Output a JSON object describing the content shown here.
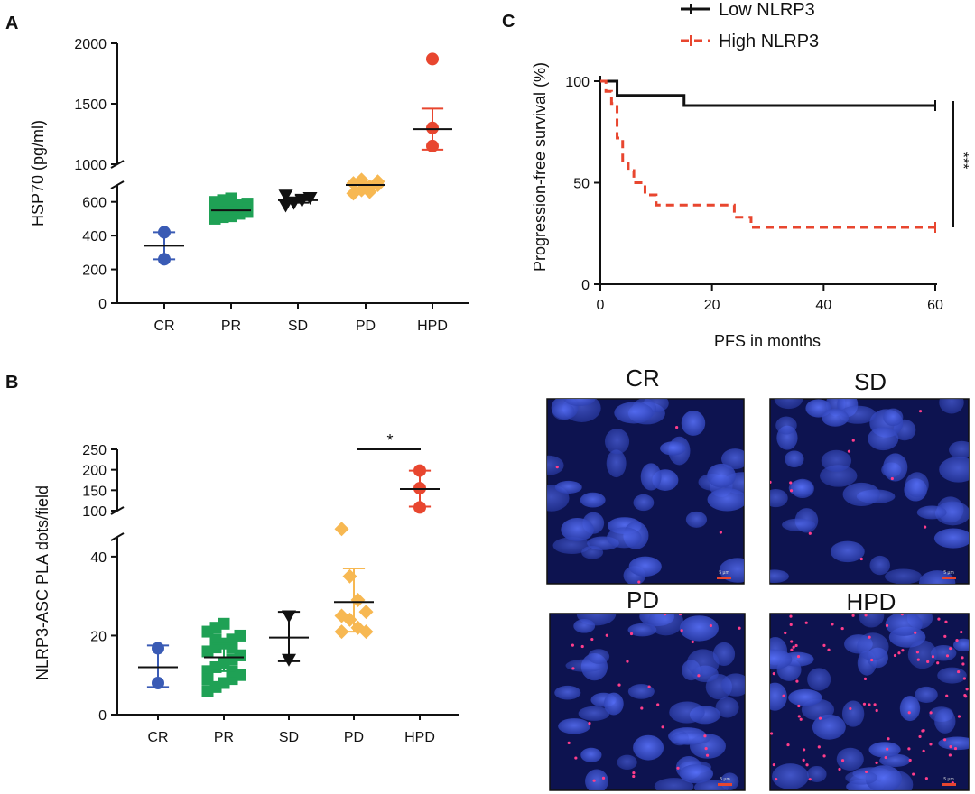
{
  "colors": {
    "CR": "#3a5bb5",
    "PR": "#1fa155",
    "SD": "#111111",
    "PD": "#f7b852",
    "HPD": "#e8462f",
    "red": "#e8462f",
    "black": "#111111"
  },
  "panels": {
    "A": {
      "letter": "A",
      "ylabel": "HSP70 (pg/ml)"
    },
    "B": {
      "letter": "B",
      "ylabel": "NLRP3-ASC PLA dots/field",
      "sig": "*"
    },
    "C": {
      "letter": "C",
      "xlabel": "PFS in months",
      "ylabel": "Progression-free survival (%)",
      "sig": "***"
    }
  },
  "images": [
    {
      "label": "CR",
      "scale": "5 µm"
    },
    {
      "label": "SD",
      "scale": "5 µm"
    },
    {
      "label": "PD",
      "scale": "5 µm"
    },
    {
      "label": "HPD",
      "scale": "5 µm"
    }
  ],
  "chart_data": [
    {
      "type": "scatter",
      "panel": "A",
      "ylabel": "HSP70 (pg/ml)",
      "categories": [
        "CR",
        "PR",
        "SD",
        "PD",
        "HPD"
      ],
      "y_ticks_lower": [
        0,
        200,
        400,
        600
      ],
      "y_ticks_upper": [
        1000,
        1500,
        2000
      ],
      "ylim": [
        0,
        2000
      ],
      "axis_break": [
        700,
        1000
      ],
      "groups": [
        {
          "name": "CR",
          "marker": "circle",
          "color": "#3a5bb5",
          "points": [
            420,
            260
          ],
          "mean": 340,
          "err_low": 260,
          "err_high": 420
        },
        {
          "name": "PR",
          "marker": "square",
          "color": "#1fa155",
          "points": [
            500,
            510,
            520,
            530,
            540,
            550,
            560,
            570,
            580,
            590,
            600,
            610,
            620,
            530,
            560,
            545,
            575,
            515
          ],
          "mean": 550,
          "err_low": 530,
          "err_high": 570
        },
        {
          "name": "SD",
          "marker": "triangle-down",
          "color": "#111111",
          "points": [
            580,
            600,
            615,
            625,
            640,
            595,
            610
          ],
          "mean": 610,
          "err_low": 595,
          "err_high": 625
        },
        {
          "name": "PD",
          "marker": "diamond",
          "color": "#f7b852",
          "points": [
            650,
            670,
            690,
            700,
            710,
            730,
            660,
            720
          ],
          "mean": 700,
          "err_low": 680,
          "err_high": 715
        },
        {
          "name": "HPD",
          "marker": "circle",
          "color": "#e8462f",
          "points": [
            1870,
            1300,
            1150
          ],
          "mean": 1290,
          "err_low": 1120,
          "err_high": 1460
        }
      ]
    },
    {
      "type": "scatter",
      "panel": "B",
      "ylabel": "NLRP3-ASC PLA dots/field",
      "categories": [
        "CR",
        "PR",
        "SD",
        "PD",
        "HPD"
      ],
      "y_ticks_lower": [
        0,
        20,
        40
      ],
      "y_ticks_upper": [
        100,
        150,
        200,
        250
      ],
      "ylim": [
        0,
        250
      ],
      "axis_break": [
        45,
        100
      ],
      "significance": {
        "between": [
          "PD",
          "HPD"
        ],
        "label": "*"
      },
      "groups": [
        {
          "name": "CR",
          "marker": "circle",
          "color": "#3a5bb5",
          "points": [
            16.8,
            8.0
          ],
          "mean": 12,
          "err_low": 7,
          "err_high": 17.5
        },
        {
          "name": "PR",
          "marker": "square",
          "color": "#1fa155",
          "points": [
            6,
            7,
            8,
            9,
            10,
            11,
            12,
            13,
            14,
            15,
            16,
            17,
            18,
            19,
            20,
            21,
            22,
            23,
            11,
            15,
            9,
            19,
            13,
            17
          ],
          "mean": 14.5,
          "err_low": 11,
          "err_high": 18
        },
        {
          "name": "SD",
          "marker": "triangle-down",
          "color": "#111111",
          "points": [
            25,
            14
          ],
          "mean": 19.5,
          "err_low": 13.5,
          "err_high": 26
        },
        {
          "name": "PD",
          "marker": "diamond",
          "color": "#f7b852",
          "points": [
            47,
            35,
            29,
            26,
            25,
            24,
            22,
            21,
            21
          ],
          "mean": 28.5,
          "err_low": 21,
          "err_high": 37
        },
        {
          "name": "HPD",
          "marker": "circle",
          "color": "#e8462f",
          "points": [
            198,
            155,
            108
          ],
          "mean": 153,
          "err_low": 110,
          "err_high": 198
        }
      ]
    },
    {
      "type": "line",
      "panel": "C",
      "step": true,
      "xlabel": "PFS in months",
      "ylabel": "Progression-free survival (%)",
      "xlim": [
        0,
        60
      ],
      "ylim": [
        0,
        100
      ],
      "x_ticks": [
        0,
        20,
        40,
        60
      ],
      "y_ticks": [
        0,
        50,
        100
      ],
      "significance": "***",
      "legend": "top",
      "series": [
        {
          "name": "Low NLRP3",
          "color": "#111111",
          "dash": false,
          "x": [
            0,
            3,
            3,
            15,
            15,
            60
          ],
          "y": [
            100,
            100,
            93,
            93,
            88,
            88
          ]
        },
        {
          "name": "High NLRP3",
          "color": "#e8462f",
          "dash": true,
          "x": [
            0,
            1,
            1,
            2,
            2,
            3,
            3,
            4,
            4,
            5,
            5,
            6,
            6,
            8,
            8,
            10,
            10,
            24,
            24,
            27,
            27,
            60
          ],
          "y": [
            100,
            100,
            95,
            95,
            89,
            89,
            72,
            72,
            61,
            61,
            56,
            56,
            50,
            50,
            44,
            44,
            39,
            39,
            33,
            33,
            28,
            28
          ]
        }
      ]
    }
  ]
}
